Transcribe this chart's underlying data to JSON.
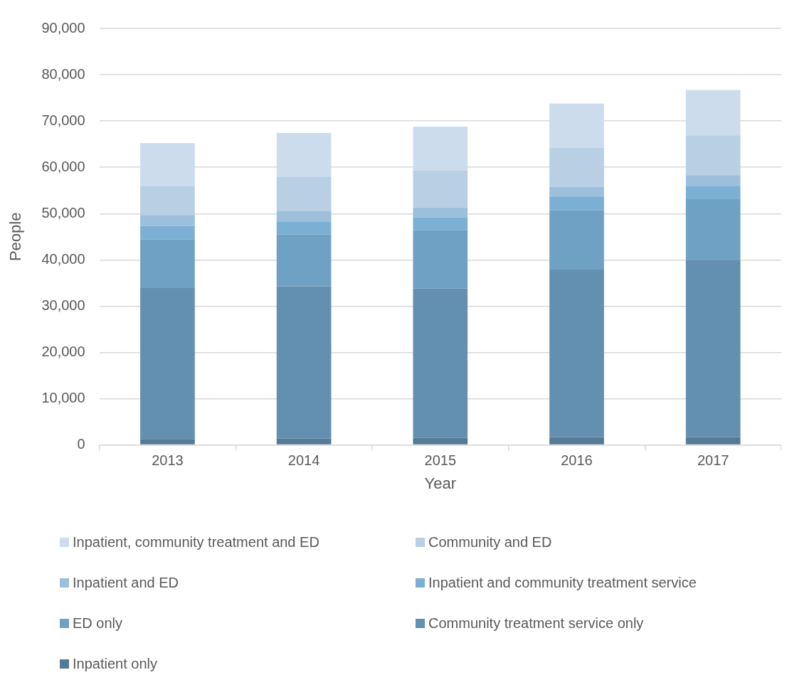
{
  "chart_data": {
    "type": "bar",
    "stacked": true,
    "xlabel": "Year",
    "ylabel": "People",
    "categories": [
      "2013",
      "2014",
      "2015",
      "2016",
      "2017"
    ],
    "series": [
      {
        "name": "Inpatient only",
        "color": "#557a96",
        "values": [
          1300,
          1400,
          1500,
          1700,
          1700
        ]
      },
      {
        "name": "Community treatment service only",
        "color": "#638fb0",
        "values": [
          32600,
          32900,
          32300,
          36200,
          38300
        ]
      },
      {
        "name": "ED only",
        "color": "#6fa1c4",
        "values": [
          10500,
          11200,
          12600,
          12800,
          13100
        ]
      },
      {
        "name": "Inpatient and community treatment service",
        "color": "#7bafd4",
        "values": [
          2900,
          2800,
          2800,
          3000,
          2900
        ]
      },
      {
        "name": "Inpatient and ED",
        "color": "#9cbfdc",
        "values": [
          2400,
          2200,
          2100,
          2100,
          2300
        ]
      },
      {
        "name": "Community and ED",
        "color": "#b8cfe4",
        "values": [
          6300,
          7500,
          8000,
          8400,
          8600
        ]
      },
      {
        "name": "Inpatient, community treatment and ED",
        "color": "#ccdcec",
        "values": [
          9200,
          9400,
          9500,
          9600,
          9800
        ]
      }
    ],
    "ylim": [
      0,
      90000
    ],
    "yticks": [
      0,
      {
        "value": 10000,
        "label": "10,000"
      },
      {
        "value": 20000,
        "label": "20,000"
      },
      {
        "value": 30000,
        "label": "30,000"
      },
      {
        "value": 40000,
        "label": "40,000"
      },
      {
        "value": 50000,
        "label": "50,000"
      },
      {
        "value": 60000,
        "label": "60,000"
      },
      {
        "value": 70000,
        "label": "70,000"
      },
      {
        "value": 80000,
        "label": "80,000"
      },
      {
        "value": 90000,
        "label": "90,000"
      }
    ],
    "grid": "y",
    "legend": "bottom"
  }
}
